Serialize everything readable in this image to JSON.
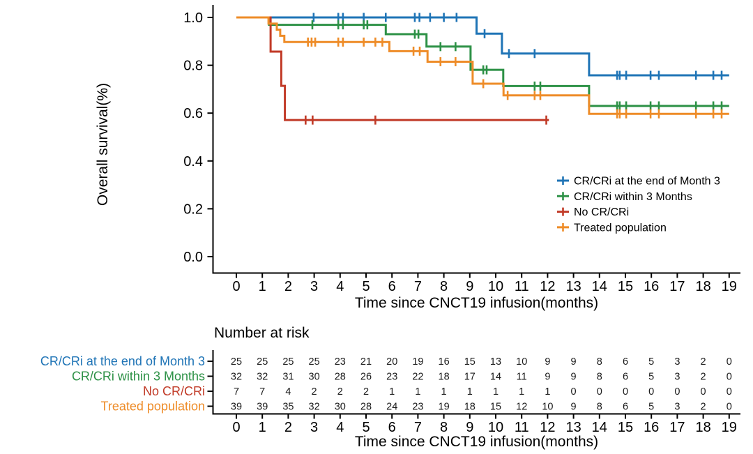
{
  "chart_data": {
    "type": "line",
    "subtype": "kaplan_meier_step",
    "title": "",
    "xlabel": "Time since CNCT19 infusion(months)",
    "ylabel": "Overall survival(%)",
    "xlim": [
      0,
      19
    ],
    "ylim": [
      0.0,
      1.0
    ],
    "grid": false,
    "legend_position": "right-center",
    "xticks": [
      0,
      1,
      2,
      3,
      4,
      5,
      6,
      7,
      8,
      9,
      10,
      11,
      12,
      13,
      14,
      15,
      16,
      17,
      18,
      19
    ],
    "yticks": [
      {
        "value": 0.0,
        "label": "0.0"
      },
      {
        "value": 0.2,
        "label": "0.2"
      },
      {
        "value": 0.4,
        "label": "0.4"
      },
      {
        "value": 0.6,
        "label": "0.6"
      },
      {
        "value": 0.8,
        "label": "0.8"
      },
      {
        "value": 1.0,
        "label": "1.0"
      }
    ],
    "series": [
      {
        "name": "CR/CRi at the end of Month 3",
        "color": "#1f74b6",
        "steps": [
          [
            0,
            1.0
          ],
          [
            9.26,
            1.0
          ],
          [
            9.26,
            0.932
          ],
          [
            10.24,
            0.932
          ],
          [
            10.24,
            0.849
          ],
          [
            13.6,
            0.849
          ],
          [
            13.6,
            0.758
          ],
          [
            19,
            0.758
          ]
        ],
        "censors": [
          [
            2.98,
            1.0
          ],
          [
            3.93,
            1.0
          ],
          [
            4.11,
            1.0
          ],
          [
            4.91,
            1.0
          ],
          [
            5.76,
            1.0
          ],
          [
            6.88,
            1.0
          ],
          [
            7.06,
            1.0
          ],
          [
            7.47,
            1.0
          ],
          [
            8.0,
            1.0
          ],
          [
            8.49,
            1.0
          ],
          [
            9.57,
            0.932
          ],
          [
            10.51,
            0.849
          ],
          [
            11.5,
            0.849
          ],
          [
            14.68,
            0.758
          ],
          [
            14.78,
            0.758
          ],
          [
            15.03,
            0.758
          ],
          [
            15.97,
            0.758
          ],
          [
            16.29,
            0.758
          ],
          [
            17.72,
            0.758
          ],
          [
            18.39,
            0.758
          ],
          [
            18.71,
            0.758
          ]
        ]
      },
      {
        "name": "CR/CRi within 3 Months",
        "color": "#2d9146",
        "steps": [
          [
            0,
            1.0
          ],
          [
            1.26,
            1.0
          ],
          [
            1.26,
            0.969
          ],
          [
            5.76,
            0.969
          ],
          [
            5.76,
            0.93
          ],
          [
            7.33,
            0.93
          ],
          [
            7.33,
            0.878
          ],
          [
            9.03,
            0.878
          ],
          [
            9.03,
            0.781
          ],
          [
            10.29,
            0.781
          ],
          [
            10.29,
            0.713
          ],
          [
            13.6,
            0.713
          ],
          [
            13.6,
            0.63
          ],
          [
            19,
            0.63
          ]
        ],
        "censors": [
          [
            2.93,
            0.969
          ],
          [
            3.93,
            0.969
          ],
          [
            4.11,
            0.969
          ],
          [
            4.91,
            0.969
          ],
          [
            5.05,
            0.969
          ],
          [
            6.88,
            0.93
          ],
          [
            7.02,
            0.93
          ],
          [
            7.87,
            0.878
          ],
          [
            8.45,
            0.878
          ],
          [
            9.52,
            0.781
          ],
          [
            9.65,
            0.781
          ],
          [
            11.5,
            0.713
          ],
          [
            11.72,
            0.713
          ],
          [
            14.68,
            0.63
          ],
          [
            14.78,
            0.63
          ],
          [
            15.03,
            0.63
          ],
          [
            15.97,
            0.63
          ],
          [
            16.29,
            0.63
          ],
          [
            17.72,
            0.63
          ],
          [
            18.39,
            0.63
          ],
          [
            18.71,
            0.63
          ]
        ]
      },
      {
        "name": "No CR/CRi",
        "color": "#c13a27",
        "steps": [
          [
            0,
            1.0
          ],
          [
            1.32,
            1.0
          ],
          [
            1.32,
            0.857
          ],
          [
            1.73,
            0.857
          ],
          [
            1.73,
            0.714
          ],
          [
            1.87,
            0.714
          ],
          [
            1.87,
            0.571
          ],
          [
            12.05,
            0.571
          ]
        ],
        "censors": [
          [
            2.67,
            0.571
          ],
          [
            2.94,
            0.571
          ],
          [
            5.36,
            0.571
          ],
          [
            11.95,
            0.571
          ]
        ]
      },
      {
        "name": "Treated population",
        "color": "#ee8c28",
        "steps": [
          [
            0,
            1.0
          ],
          [
            1.24,
            1.0
          ],
          [
            1.24,
            0.974
          ],
          [
            1.56,
            0.974
          ],
          [
            1.56,
            0.949
          ],
          [
            1.69,
            0.949
          ],
          [
            1.69,
            0.923
          ],
          [
            1.85,
            0.923
          ],
          [
            1.85,
            0.897
          ],
          [
            5.9,
            0.897
          ],
          [
            5.9,
            0.859
          ],
          [
            7.37,
            0.859
          ],
          [
            7.37,
            0.815
          ],
          [
            9.11,
            0.815
          ],
          [
            9.11,
            0.723
          ],
          [
            10.3,
            0.723
          ],
          [
            10.3,
            0.674
          ],
          [
            13.6,
            0.674
          ],
          [
            13.6,
            0.597
          ],
          [
            19,
            0.597
          ]
        ],
        "censors": [
          [
            2.76,
            0.897
          ],
          [
            2.9,
            0.897
          ],
          [
            3.04,
            0.897
          ],
          [
            3.93,
            0.897
          ],
          [
            4.11,
            0.897
          ],
          [
            4.91,
            0.897
          ],
          [
            5.36,
            0.897
          ],
          [
            5.63,
            0.897
          ],
          [
            6.83,
            0.859
          ],
          [
            7.07,
            0.859
          ],
          [
            7.87,
            0.815
          ],
          [
            8.45,
            0.815
          ],
          [
            9.52,
            0.723
          ],
          [
            10.46,
            0.674
          ],
          [
            11.5,
            0.674
          ],
          [
            11.72,
            0.674
          ],
          [
            14.68,
            0.597
          ],
          [
            14.78,
            0.597
          ],
          [
            15.03,
            0.597
          ],
          [
            15.97,
            0.597
          ],
          [
            16.29,
            0.597
          ],
          [
            17.72,
            0.597
          ],
          [
            18.39,
            0.597
          ],
          [
            18.71,
            0.597
          ]
        ]
      }
    ],
    "number_at_risk": {
      "title": "Number at risk",
      "time_points": [
        0,
        1,
        2,
        3,
        4,
        5,
        6,
        7,
        8,
        9,
        10,
        11,
        12,
        13,
        14,
        15,
        16,
        17,
        18,
        19
      ],
      "rows": [
        {
          "name": "CR/CRi at the end of Month 3",
          "color": "#1f74b6",
          "counts": [
            25,
            25,
            25,
            25,
            23,
            21,
            20,
            19,
            16,
            15,
            13,
            10,
            9,
            9,
            8,
            6,
            5,
            3,
            2,
            0
          ]
        },
        {
          "name": "CR/CRi within 3 Months",
          "color": "#2d9146",
          "counts": [
            32,
            32,
            31,
            30,
            28,
            26,
            23,
            22,
            18,
            17,
            14,
            11,
            9,
            9,
            8,
            6,
            5,
            3,
            2,
            0
          ]
        },
        {
          "name": "No CR/CRi",
          "color": "#c13a27",
          "counts": [
            7,
            7,
            4,
            2,
            2,
            2,
            1,
            1,
            1,
            1,
            1,
            1,
            1,
            0,
            0,
            0,
            0,
            0,
            0,
            0
          ]
        },
        {
          "name": "Treated population",
          "color": "#ee8c28",
          "counts": [
            39,
            39,
            35,
            32,
            30,
            28,
            24,
            23,
            19,
            18,
            15,
            12,
            10,
            9,
            8,
            6,
            5,
            3,
            2,
            0
          ]
        }
      ]
    }
  }
}
